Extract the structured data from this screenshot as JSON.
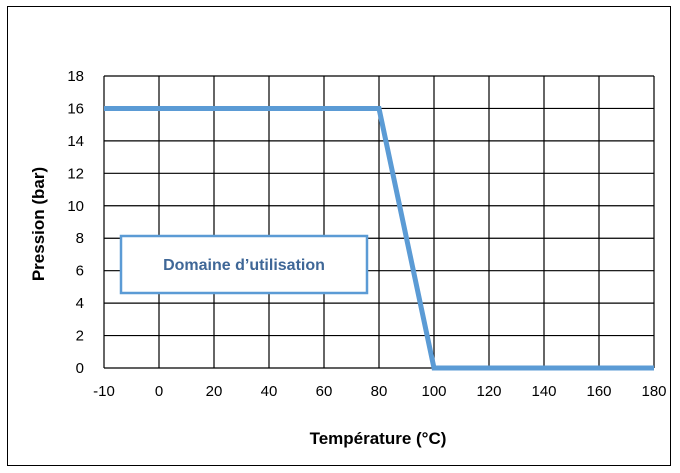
{
  "chart_data": {
    "type": "line",
    "xlabel": "Température (°C)",
    "ylabel": "Pression (bar)",
    "xlim": [
      -10,
      180
    ],
    "ylim": [
      0,
      18
    ],
    "x_ticks": [
      -10,
      0,
      20,
      40,
      60,
      80,
      100,
      120,
      140,
      160,
      180
    ],
    "y_ticks": [
      0,
      2,
      4,
      6,
      8,
      10,
      12,
      14,
      16,
      18
    ],
    "grid": true,
    "series": [
      {
        "x": [
          -10,
          80,
          100,
          180
        ],
        "y": [
          16,
          16,
          0,
          0
        ],
        "color": "#5b9bd5"
      }
    ],
    "annotations": [
      {
        "text": "Domaine d’utilisation",
        "color": "#3f6797"
      }
    ]
  }
}
